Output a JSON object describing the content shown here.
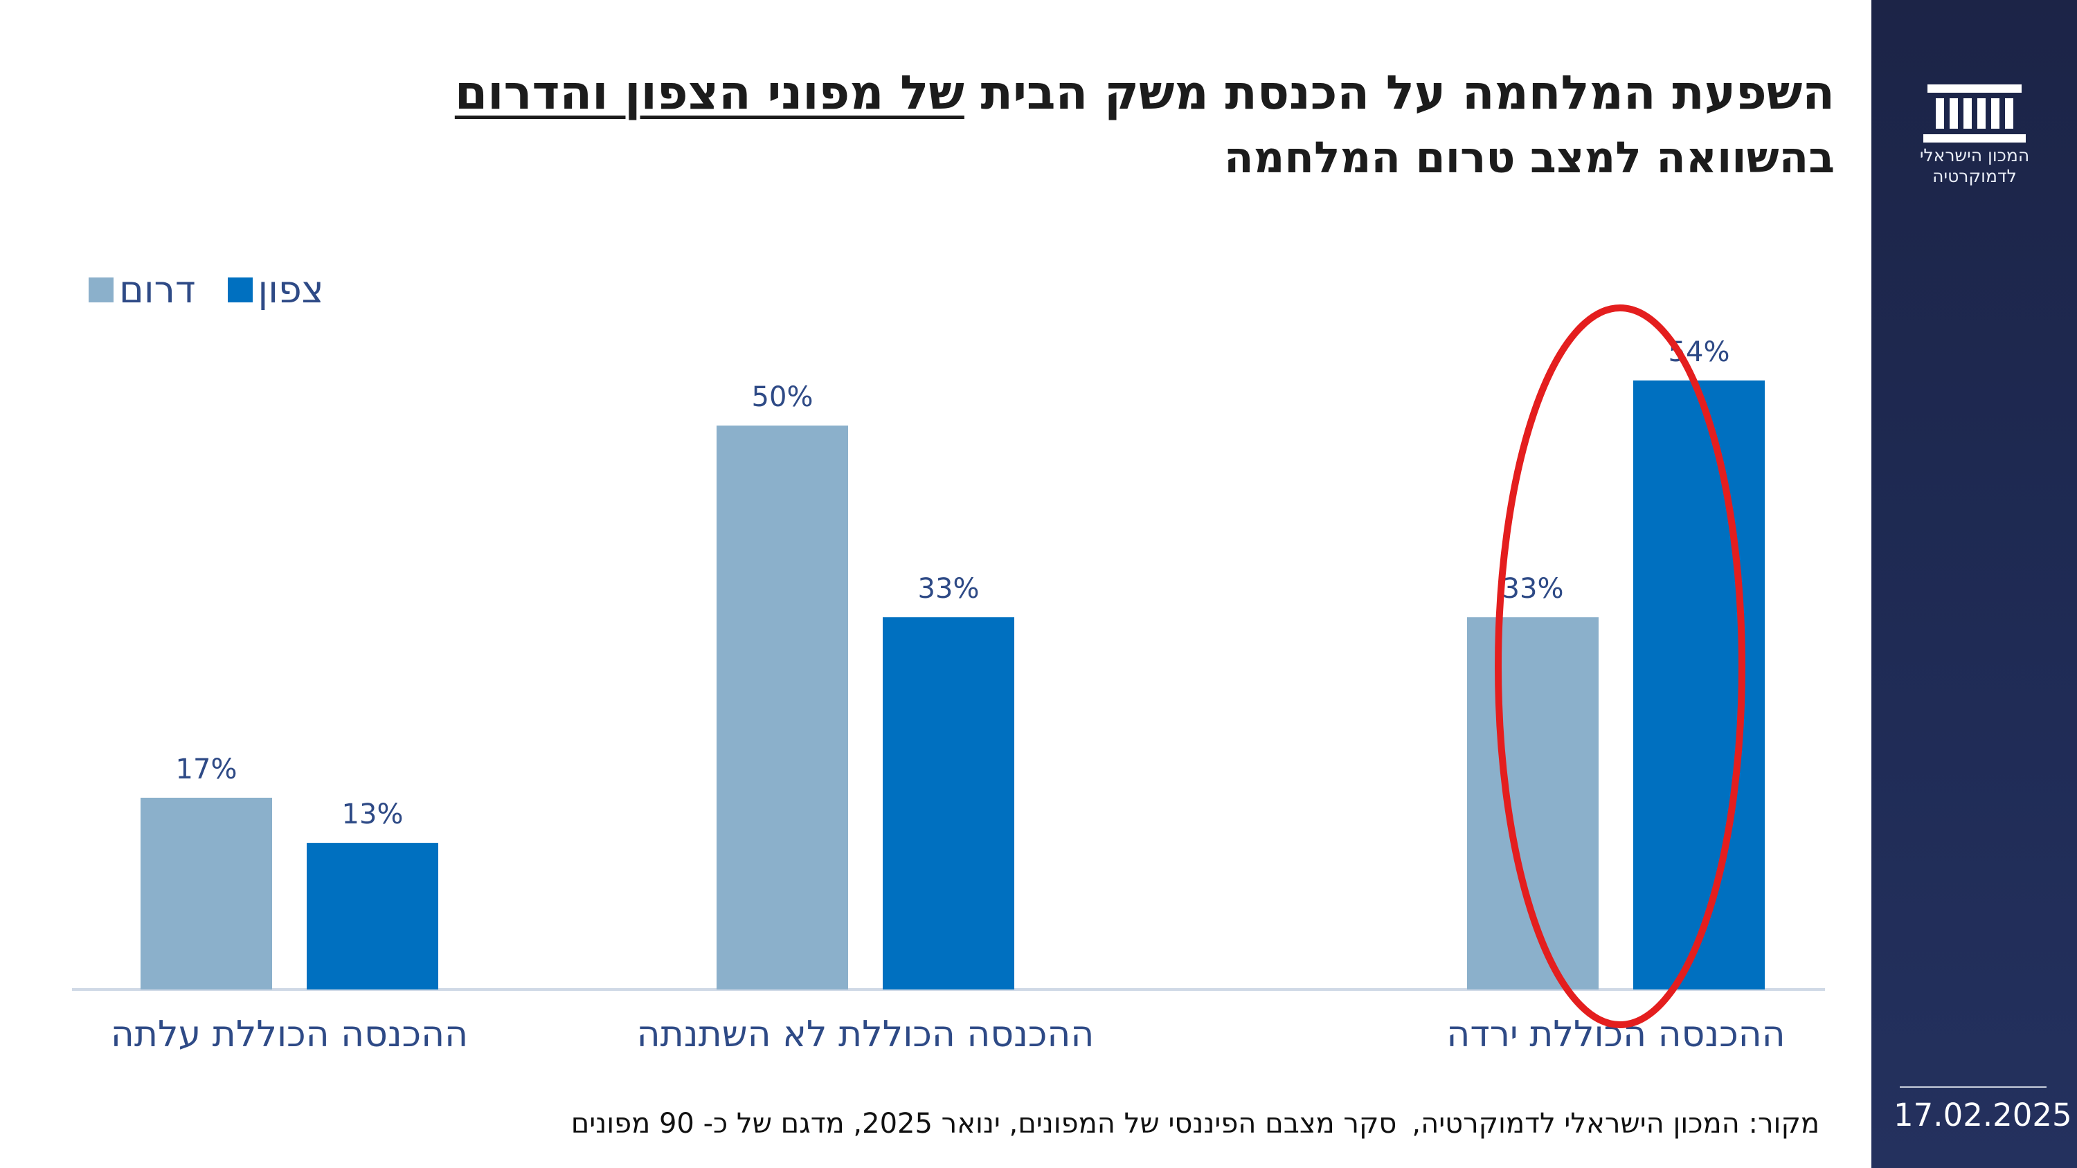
{
  "title": {
    "part1": "השפעת המלחמה על הכנסת משק הבית",
    "part2_underlined": "של מפוני הצפון והדרום"
  },
  "subtitle": "בהשוואה למצב טרום המלחמה",
  "sidebar": {
    "logo_line1": "המכון הישראלי",
    "logo_line2": "לדמוקרטיה",
    "date": "17.02.2025"
  },
  "source": {
    "part1": "מקור: המכון הישראלי לדמוקרטיה,",
    "part2": "סקר מצבם הפיננסי של המפונים, ינואר 2025, מדגם של כ- 90 מפונים"
  },
  "colors": {
    "south": "#8bb0cb",
    "north": "#0070c0",
    "highlight": "#e41e1e",
    "sidebar": "#1f2b55",
    "text_blue": "#2e4a86"
  },
  "chart_data": {
    "type": "bar",
    "categories": [
      "ההכנסה הכוללת ירדה",
      "ההכנסה הכוללת לא השתנתה",
      "ההכנסה הכוללת עלתה"
    ],
    "series": [
      {
        "name": "דרום",
        "values": [
          33,
          50,
          17
        ]
      },
      {
        "name": "צפון",
        "values": [
          54,
          33,
          13
        ]
      }
    ],
    "data_labels": [
      [
        "33%",
        "50%",
        "17%"
      ],
      [
        "54%",
        "33%",
        "13%"
      ]
    ],
    "unit": "%",
    "ylim": [
      0,
      54
    ],
    "category_order": "right-to-left",
    "legend": "top-left",
    "grid": false,
    "annotation": "red ellipse highlighting the 54% bar for צפון in ההכנסה הכוללת ירדה"
  }
}
